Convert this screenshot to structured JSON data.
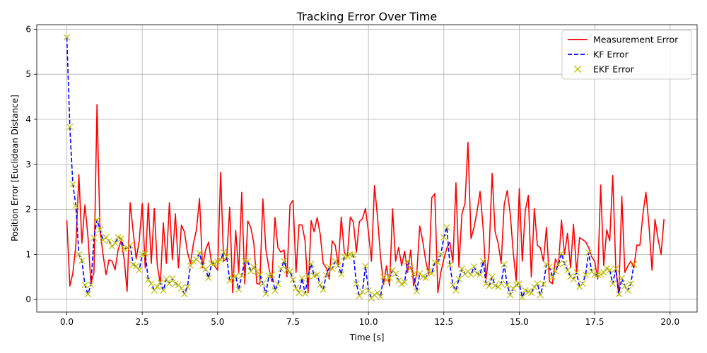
{
  "chart_data": {
    "type": "line",
    "title": "Tracking Error Over Time",
    "xlabel": "Time [s]",
    "ylabel": "Position Error [Euclidean Distance]",
    "xlim": [
      -0.996,
      20.896
    ],
    "ylim": [
      -0.28,
      6.1
    ],
    "xticks": [
      0.0,
      2.5,
      5.0,
      7.5,
      10.0,
      12.5,
      15.0,
      17.5,
      20.0
    ],
    "xtick_labels": [
      "0.0",
      "2.5",
      "5.0",
      "7.5",
      "10.0",
      "12.5",
      "15.0",
      "17.5",
      "20.0"
    ],
    "yticks": [
      0,
      1,
      2,
      3,
      4,
      5,
      6
    ],
    "ytick_labels": [
      "0",
      "1",
      "2",
      "3",
      "4",
      "5",
      "6"
    ],
    "grid": true,
    "legend_position": "top-right",
    "x_step": 0.1,
    "series": [
      {
        "name": "Measurement Error",
        "style": "solid",
        "marker": "none",
        "color": "#ff0000",
        "values": [
          1.76,
          0.3,
          0.58,
          1.2,
          2.77,
          1.25,
          2.1,
          1.4,
          0.35,
          0.6,
          4.33,
          1.55,
          1.0,
          0.55,
          0.88,
          0.85,
          0.66,
          1.1,
          1.3,
          0.9,
          0.18,
          2.15,
          1.5,
          0.9,
          1.3,
          2.13,
          0.7,
          2.14,
          0.8,
          2.02,
          0.75,
          0.35,
          1.7,
          0.8,
          2.15,
          0.88,
          1.9,
          0.7,
          1.65,
          1.5,
          1.05,
          0.8,
          1.25,
          1.55,
          2.24,
          0.7,
          1.1,
          1.27,
          0.8,
          0.75,
          0.65,
          2.82,
          0.85,
          0.9,
          2.05,
          0.15,
          1.53,
          0.6,
          2.38,
          0.35,
          1.74,
          1.6,
          1.25,
          0.35,
          0.34,
          2.23,
          1.1,
          0.7,
          0.4,
          1.82,
          1.15,
          1.05,
          1.1,
          0.5,
          2.1,
          2.2,
          0.6,
          1.66,
          1.65,
          1.3,
          0.15,
          1.75,
          1.5,
          1.82,
          1.45,
          0.8,
          0.7,
          0.45,
          1.3,
          1.2,
          0.75,
          1.83,
          1.05,
          0.95,
          1.83,
          1.72,
          1.05,
          1.73,
          1.79,
          2.02,
          1.5,
          0.85,
          2.53,
          1.84,
          0.95,
          0.33,
          0.75,
          0.3,
          2.01,
          0.85,
          1.15,
          0.75,
          1.07,
          0.6,
          1.1,
          0.3,
          0.55,
          1.63,
          1.3,
          0.85,
          0.56,
          2.26,
          2.35,
          0.15,
          0.6,
          0.9,
          1.14,
          1.27,
          0.82,
          2.59,
          0.72,
          1.9,
          2.13,
          3.49,
          1.35,
          1.6,
          1.95,
          2.4,
          1.6,
          0.45,
          1.05,
          2.8,
          1.5,
          1.25,
          0.8,
          2.1,
          2.42,
          1.9,
          1.05,
          0.4,
          2.46,
          0.85,
          1.98,
          2.31,
          0.5,
          2.02,
          1.2,
          1.15,
          0.85,
          1.6,
          0.4,
          0.35,
          0.9,
          0.75,
          1.76,
          1.0,
          1.47,
          0.7,
          1.67,
          0.6,
          1.37,
          1.33,
          1.28,
          1.15,
          0.95,
          0.85,
          0.45,
          2.54,
          0.75,
          1.55,
          1.3,
          2.75,
          0.7,
          0.1,
          2.29,
          0.6,
          0.74,
          0.85,
          0.7,
          1.21,
          1.2,
          1.9,
          2.38,
          1.65,
          0.65,
          1.78,
          1.35,
          1.0,
          1.79
        ]
      },
      {
        "name": "KF Error",
        "style": "dashed",
        "marker": "none",
        "color": "#0000ff",
        "values": [
          5.82,
          3.83,
          2.56,
          2.08,
          1.0,
          0.86,
          0.32,
          0.12,
          0.33,
          1.37,
          1.77,
          1.55,
          1.32,
          1.38,
          1.3,
          1.18,
          1.25,
          1.38,
          1.35,
          1.13,
          1.14,
          1.2,
          0.77,
          0.74,
          0.65,
          1.0,
          1.02,
          0.44,
          0.35,
          0.2,
          0.28,
          0.38,
          0.2,
          0.45,
          0.35,
          0.47,
          0.35,
          0.32,
          0.25,
          0.12,
          0.28,
          0.75,
          0.84,
          0.89,
          1.03,
          0.75,
          0.67,
          0.48,
          0.8,
          0.8,
          0.84,
          0.88,
          1.05,
          0.95,
          0.42,
          0.47,
          0.52,
          0.22,
          0.53,
          0.85,
          0.85,
          0.63,
          0.72,
          0.62,
          0.55,
          0.35,
          0.13,
          0.52,
          0.55,
          0.2,
          0.34,
          0.68,
          0.85,
          0.65,
          0.62,
          0.44,
          0.25,
          0.15,
          0.47,
          0.13,
          0.52,
          0.79,
          0.52,
          0.55,
          0.33,
          0.22,
          0.54,
          0.72,
          0.68,
          0.85,
          0.75,
          0.56,
          0.95,
          0.95,
          1.0,
          0.99,
          0.35,
          0.08,
          0.17,
          0.74,
          0.2,
          0.03,
          0.1,
          0.15,
          0.06,
          0.5,
          0.43,
          0.48,
          0.65,
          0.57,
          0.42,
          0.34,
          0.38,
          0.85,
          0.7,
          0.56,
          0.18,
          0.58,
          0.5,
          0.48,
          0.62,
          0.58,
          0.82,
          0.82,
          1.0,
          1.38,
          1.6,
          0.77,
          0.32,
          0.2,
          0.45,
          0.68,
          0.56,
          0.62,
          0.55,
          0.73,
          0.58,
          0.55,
          0.85,
          0.35,
          0.3,
          0.5,
          0.31,
          0.28,
          0.35,
          0.78,
          0.32,
          0.1,
          0.24,
          0.33,
          0.35,
          0.05,
          0.2,
          0.17,
          0.15,
          0.28,
          0.35,
          0.1,
          0.34,
          0.78,
          0.72,
          0.5,
          0.63,
          0.78,
          1.02,
          0.8,
          0.65,
          0.51,
          0.45,
          0.6,
          0.28,
          0.35,
          0.55,
          1.04,
          0.62,
          0.55,
          0.55,
          0.55,
          0.6,
          0.69,
          0.65,
          0.35,
          0.68,
          0.12,
          0.47,
          0.3,
          0.2,
          0.35,
          0.78
        ]
      },
      {
        "name": "EKF Error",
        "style": "none",
        "marker": "x",
        "color": "#bfbf00",
        "values": [
          5.82,
          3.83,
          2.56,
          2.08,
          1.0,
          0.86,
          0.32,
          0.12,
          0.33,
          1.37,
          1.77,
          1.55,
          1.32,
          1.38,
          1.3,
          1.18,
          1.25,
          1.38,
          1.35,
          1.13,
          1.14,
          1.2,
          0.77,
          0.74,
          0.65,
          1.0,
          1.02,
          0.44,
          0.35,
          0.2,
          0.28,
          0.38,
          0.2,
          0.45,
          0.35,
          0.47,
          0.35,
          0.32,
          0.25,
          0.12,
          0.28,
          0.75,
          0.84,
          0.89,
          1.03,
          0.75,
          0.67,
          0.48,
          0.8,
          0.8,
          0.84,
          0.88,
          1.05,
          0.95,
          0.42,
          0.47,
          0.52,
          0.22,
          0.53,
          0.85,
          0.85,
          0.63,
          0.72,
          0.62,
          0.55,
          0.35,
          0.13,
          0.52,
          0.55,
          0.2,
          0.34,
          0.68,
          0.85,
          0.65,
          0.62,
          0.44,
          0.25,
          0.15,
          0.47,
          0.13,
          0.52,
          0.79,
          0.52,
          0.55,
          0.33,
          0.22,
          0.54,
          0.72,
          0.68,
          0.85,
          0.75,
          0.56,
          0.95,
          0.95,
          1.0,
          0.99,
          0.35,
          0.08,
          0.17,
          0.74,
          0.2,
          0.03,
          0.1,
          0.15,
          0.06,
          0.5,
          0.43,
          0.48,
          0.65,
          0.57,
          0.42,
          0.34,
          0.38,
          0.85,
          0.7,
          0.56,
          0.18,
          0.58,
          0.5,
          0.48,
          0.62,
          0.58,
          0.82,
          0.82,
          1.0,
          1.38,
          1.6,
          0.77,
          0.32,
          0.2,
          0.45,
          0.68,
          0.56,
          0.62,
          0.55,
          0.73,
          0.58,
          0.55,
          0.85,
          0.35,
          0.3,
          0.5,
          0.31,
          0.28,
          0.35,
          0.78,
          0.32,
          0.1,
          0.24,
          0.33,
          0.35,
          0.05,
          0.2,
          0.17,
          0.15,
          0.28,
          0.35,
          0.1,
          0.34,
          0.78,
          0.72,
          0.5,
          0.63,
          0.78,
          1.02,
          0.8,
          0.65,
          0.51,
          0.45,
          0.6,
          0.28,
          0.35,
          0.55,
          1.04,
          0.62,
          0.55,
          0.55,
          0.55,
          0.6,
          0.69,
          0.65,
          0.35,
          0.68,
          0.12,
          0.47,
          0.3,
          0.2,
          0.35,
          0.78
        ]
      }
    ]
  }
}
